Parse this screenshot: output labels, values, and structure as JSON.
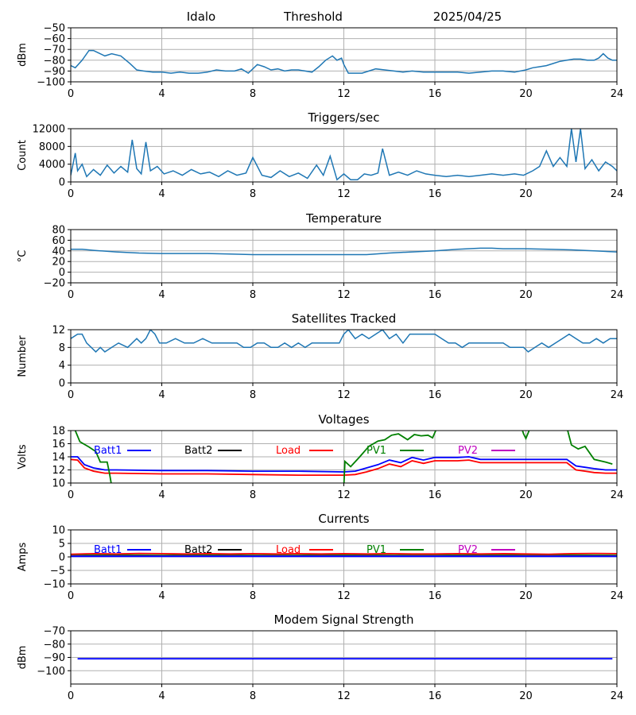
{
  "header": {
    "station": "Idalo",
    "threshold_label": "Threshold",
    "date": "2025/04/25"
  },
  "colors": {
    "series_default": "#1f77b4",
    "batt1": "#0000ff",
    "batt2": "#000000",
    "load": "#ff0000",
    "pv1": "#008000",
    "pv2": "#bf00bf",
    "grid": "#b0b0b0"
  },
  "chart_data": [
    {
      "id": "threshold",
      "type": "line",
      "title": "",
      "ylabel": "dBm",
      "xlim": [
        0,
        24
      ],
      "xticks": [
        "0",
        "4",
        "8",
        "12",
        "16",
        "20",
        "24"
      ],
      "ylim": [
        -100,
        -50
      ],
      "yticks": [
        "−50",
        "−60",
        "−70",
        "−80",
        "−90",
        "−100"
      ],
      "series": [
        {
          "color_key": "series_default",
          "x": [
            0,
            0.2,
            0.5,
            0.8,
            1.0,
            1.2,
            1.5,
            1.8,
            2.2,
            2.6,
            2.9,
            3.2,
            3.6,
            4.0,
            4.4,
            4.8,
            5.2,
            5.6,
            6.0,
            6.4,
            6.8,
            7.2,
            7.5,
            7.8,
            8.0,
            8.2,
            8.5,
            8.8,
            9.1,
            9.4,
            9.7,
            10.0,
            10.3,
            10.6,
            10.9,
            11.2,
            11.5,
            11.7,
            11.9,
            12.0,
            12.2,
            12.5,
            12.8,
            13.1,
            13.4,
            13.8,
            14.2,
            14.6,
            15.0,
            15.5,
            16.0,
            16.5,
            17.0,
            17.5,
            18.0,
            18.5,
            19.0,
            19.5,
            20.0,
            20.3,
            20.6,
            20.9,
            21.2,
            21.5,
            21.8,
            22.1,
            22.4,
            22.7,
            23.0,
            23.2,
            23.4,
            23.6,
            23.8,
            24.0
          ],
          "y": [
            -85,
            -87,
            -80,
            -71,
            -71,
            -73,
            -76,
            -74,
            -76,
            -83,
            -89,
            -90,
            -91,
            -91,
            -92,
            -91,
            -92,
            -92,
            -91,
            -89,
            -90,
            -90,
            -88,
            -92,
            -88,
            -84,
            -86,
            -89,
            -88,
            -90,
            -89,
            -89,
            -90,
            -91,
            -86,
            -80,
            -76,
            -80,
            -78,
            -84,
            -92,
            -92,
            -92,
            -90,
            -88,
            -89,
            -90,
            -91,
            -90,
            -91,
            -91,
            -91,
            -91,
            -92,
            -91,
            -90,
            -90,
            -91,
            -89,
            -87,
            -86,
            -85,
            -83,
            -81,
            -80,
            -79,
            -79,
            -80,
            -80,
            -78,
            -74,
            -78,
            -80,
            -80
          ]
        }
      ]
    },
    {
      "id": "triggers",
      "type": "line",
      "title": "Triggers/sec",
      "ylabel": "Count",
      "xlim": [
        0,
        24
      ],
      "xticks": [
        "0",
        "4",
        "8",
        "12",
        "16",
        "20",
        "24"
      ],
      "ylim": [
        0,
        12000
      ],
      "yticks": [
        "0",
        "4000",
        "8000",
        "12000"
      ],
      "series": [
        {
          "color_key": "series_default",
          "x": [
            0,
            0.2,
            0.3,
            0.5,
            0.7,
            1.0,
            1.3,
            1.6,
            1.9,
            2.2,
            2.5,
            2.7,
            2.9,
            3.1,
            3.3,
            3.5,
            3.8,
            4.1,
            4.5,
            4.9,
            5.3,
            5.7,
            6.1,
            6.5,
            6.9,
            7.3,
            7.7,
            8.0,
            8.4,
            8.8,
            9.2,
            9.6,
            10.0,
            10.4,
            10.8,
            11.1,
            11.4,
            11.7,
            12.0,
            12.3,
            12.6,
            12.9,
            13.2,
            13.5,
            13.7,
            14.0,
            14.4,
            14.8,
            15.2,
            15.6,
            16.0,
            16.5,
            17.0,
            17.5,
            18.0,
            18.5,
            19.0,
            19.5,
            19.9,
            20.3,
            20.6,
            20.9,
            21.2,
            21.5,
            21.8,
            22.0,
            22.2,
            22.4,
            22.6,
            22.9,
            23.2,
            23.5,
            23.8,
            24.0
          ],
          "y": [
            1500,
            6500,
            2500,
            4000,
            1200,
            2800,
            1500,
            3800,
            2000,
            3500,
            2200,
            9500,
            3000,
            1800,
            9000,
            2500,
            3500,
            1800,
            2500,
            1500,
            2800,
            1800,
            2200,
            1200,
            2500,
            1500,
            2000,
            5500,
            1500,
            1000,
            2500,
            1200,
            2000,
            800,
            3800,
            1500,
            5800,
            500,
            1800,
            500,
            500,
            1800,
            1500,
            2000,
            7500,
            1500,
            2200,
            1500,
            2500,
            1800,
            1500,
            1200,
            1500,
            1200,
            1500,
            1800,
            1500,
            1800,
            1500,
            2500,
            3500,
            7000,
            3500,
            5500,
            3500,
            12000,
            4500,
            12000,
            3000,
            5000,
            2500,
            4500,
            3500,
            2500
          ]
        }
      ]
    },
    {
      "id": "temperature",
      "type": "line",
      "title": "Temperature",
      "ylabel": "°C",
      "xlim": [
        0,
        24
      ],
      "xticks": [
        "0",
        "4",
        "8",
        "12",
        "16",
        "20",
        "24"
      ],
      "ylim": [
        -20,
        80
      ],
      "yticks": [
        "−20",
        "0",
        "20",
        "40",
        "60",
        "80"
      ],
      "series": [
        {
          "color_key": "series_default",
          "x": [
            0,
            0.5,
            1,
            2,
            3,
            4,
            5,
            6,
            7,
            8,
            9,
            10,
            11,
            12,
            13,
            14,
            15,
            16,
            17,
            18,
            18.5,
            19,
            20,
            21,
            22,
            23,
            24
          ],
          "y": [
            43,
            43,
            41,
            38,
            36,
            35,
            35,
            35,
            34,
            33,
            33,
            33,
            33,
            33,
            33,
            36,
            38,
            40,
            43,
            45,
            45,
            44,
            44,
            43,
            42,
            40,
            38
          ]
        }
      ]
    },
    {
      "id": "satellites",
      "type": "line",
      "title": "Satellites Tracked",
      "ylabel": "Number",
      "xlim": [
        0,
        24
      ],
      "xticks": [
        "0",
        "4",
        "8",
        "12",
        "16",
        "20",
        "24"
      ],
      "ylim": [
        0,
        12
      ],
      "yticks": [
        "0",
        "4",
        "8",
        "12"
      ],
      "series": [
        {
          "color_key": "series_default",
          "x": [
            0,
            0.3,
            0.5,
            0.7,
            0.9,
            1.1,
            1.3,
            1.5,
            1.8,
            2.1,
            2.5,
            2.9,
            3.1,
            3.3,
            3.5,
            3.7,
            3.9,
            4.2,
            4.6,
            5.0,
            5.4,
            5.8,
            6.2,
            6.6,
            7.0,
            7.3,
            7.6,
            7.9,
            8.2,
            8.5,
            8.8,
            9.1,
            9.4,
            9.7,
            10.0,
            10.3,
            10.6,
            11.0,
            11.4,
            11.8,
            12.0,
            12.2,
            12.5,
            12.8,
            13.1,
            13.4,
            13.7,
            14.0,
            14.3,
            14.6,
            14.9,
            15.2,
            15.5,
            15.8,
            16.0,
            16.3,
            16.6,
            16.9,
            17.2,
            17.5,
            17.8,
            18.1,
            18.4,
            18.7,
            19.0,
            19.3,
            19.6,
            19.9,
            20.1,
            20.4,
            20.7,
            21.0,
            21.3,
            21.6,
            21.9,
            22.2,
            22.5,
            22.8,
            23.1,
            23.4,
            23.7,
            24.0
          ],
          "y": [
            10,
            11,
            11,
            9,
            8,
            7,
            8,
            7,
            8,
            9,
            8,
            10,
            9,
            10,
            12,
            11,
            9,
            9,
            10,
            9,
            9,
            10,
            9,
            9,
            9,
            9,
            8,
            8,
            9,
            9,
            8,
            8,
            9,
            8,
            9,
            8,
            9,
            9,
            9,
            9,
            11,
            12,
            10,
            11,
            10,
            11,
            12,
            10,
            11,
            9,
            11,
            11,
            11,
            11,
            11,
            10,
            9,
            9,
            8,
            9,
            9,
            9,
            9,
            9,
            9,
            8,
            8,
            8,
            7,
            8,
            9,
            8,
            9,
            10,
            11,
            10,
            9,
            9,
            10,
            9,
            10,
            10
          ]
        }
      ]
    },
    {
      "id": "voltages",
      "type": "line",
      "title": "Voltages",
      "ylabel": "Volts",
      "xlim": [
        0,
        24
      ],
      "xticks": [
        "0",
        "4",
        "8",
        "12",
        "16",
        "20",
        "24"
      ],
      "ylim": [
        10,
        18
      ],
      "yticks": [
        "10",
        "12",
        "14",
        "16",
        "18"
      ],
      "legend": [
        "Batt1",
        "Batt2",
        "Load",
        "PV1",
        "PV2"
      ],
      "series": [
        {
          "name": "Batt1",
          "color_key": "batt1",
          "x": [
            0,
            0.3,
            0.6,
            1.0,
            1.5,
            2.0,
            4.0,
            6.0,
            8.0,
            10.0,
            12.0,
            12.5,
            13.0,
            13.5,
            14.0,
            14.5,
            15.0,
            15.5,
            16.0,
            16.5,
            17.0,
            17.5,
            18.0,
            19.0,
            20.0,
            21.0,
            21.8,
            22.2,
            22.6,
            23.0,
            23.5,
            24.0
          ],
          "y": [
            14,
            14,
            12.8,
            12.3,
            12.0,
            12.0,
            11.9,
            11.9,
            11.8,
            11.8,
            11.7,
            11.8,
            12.3,
            12.8,
            13.5,
            13.1,
            13.9,
            13.5,
            13.9,
            13.9,
            13.9,
            14.0,
            13.6,
            13.6,
            13.6,
            13.6,
            13.6,
            12.6,
            12.4,
            12.2,
            12.0,
            12.0
          ]
        },
        {
          "name": "Load",
          "color_key": "load",
          "x": [
            0,
            0.3,
            0.6,
            1.0,
            1.5,
            2.0,
            4.0,
            6.0,
            8.0,
            10.0,
            12.0,
            12.5,
            13.0,
            13.5,
            14.0,
            14.5,
            15.0,
            15.5,
            16.0,
            16.5,
            17.0,
            17.5,
            18.0,
            19.0,
            20.0,
            21.0,
            21.8,
            22.2,
            22.6,
            23.0,
            23.5,
            24.0
          ],
          "y": [
            13.6,
            13.5,
            12.3,
            11.8,
            11.5,
            11.5,
            11.4,
            11.4,
            11.3,
            11.2,
            11.2,
            11.3,
            11.7,
            12.2,
            12.9,
            12.5,
            13.4,
            13.0,
            13.4,
            13.4,
            13.4,
            13.5,
            13.1,
            13.1,
            13.1,
            13.1,
            13.1,
            12.0,
            11.8,
            11.6,
            11.5,
            11.5
          ]
        },
        {
          "name": "PV1",
          "color_key": "pv1",
          "x": [
            0,
            0.2,
            0.4,
            0.8,
            1.1,
            1.3,
            1.6,
            1.7,
            1.8,
            12.0,
            12.05,
            12.3,
            12.7,
            13.1,
            13.5,
            13.8,
            14.1,
            14.4,
            14.8,
            15.1,
            15.4,
            15.7,
            15.9,
            16.1,
            19.8,
            19.9,
            20.0,
            20.2,
            21.8,
            22.0,
            22.3,
            22.6,
            23.0,
            23.5,
            23.8
          ],
          "y": [
            18.5,
            18,
            16.3,
            15.5,
            14.8,
            13.2,
            13.2,
            11.5,
            9.5,
            9.5,
            13.3,
            12.5,
            14.0,
            15.6,
            16.4,
            16.6,
            17.3,
            17.5,
            16.6,
            17.4,
            17.2,
            17.3,
            16.9,
            18.5,
            18.5,
            17.5,
            16.8,
            18.5,
            18.5,
            15.8,
            15.2,
            15.6,
            13.6,
            13.2,
            12.9
          ]
        },
        {
          "name": "Batt2",
          "color_key": "batt2",
          "x": [],
          "y": []
        },
        {
          "name": "PV2",
          "color_key": "pv2",
          "x": [],
          "y": []
        }
      ]
    },
    {
      "id": "currents",
      "type": "line",
      "title": "Currents",
      "ylabel": "Amps",
      "xlim": [
        0,
        24
      ],
      "xticks": [
        "0",
        "4",
        "8",
        "12",
        "16",
        "20",
        "24"
      ],
      "ylim": [
        -10,
        10
      ],
      "yticks": [
        "−10",
        "−5",
        "0",
        "5",
        "10"
      ],
      "legend": [
        "Batt1",
        "Batt2",
        "Load",
        "PV1",
        "PV2"
      ],
      "series": [
        {
          "name": "PV1",
          "color_key": "pv1",
          "x": [
            0,
            2,
            4,
            6,
            8,
            10,
            12,
            14,
            16,
            18,
            20,
            22,
            24
          ],
          "y": [
            0.6,
            0.7,
            0.6,
            0.7,
            0.6,
            0.6,
            0.7,
            0.6,
            0.6,
            0.7,
            0.6,
            0.7,
            0.6
          ]
        },
        {
          "name": "PV2",
          "color_key": "pv2",
          "x": [
            0,
            24
          ],
          "y": [
            0.3,
            0.3
          ]
        },
        {
          "name": "Load",
          "color_key": "load",
          "x": [
            0,
            1,
            2,
            3,
            4,
            5,
            6,
            7,
            8,
            9,
            10,
            11,
            12,
            13,
            14,
            15,
            16,
            17,
            18,
            19,
            20,
            21,
            22,
            23,
            24
          ],
          "y": [
            1.0,
            1.2,
            1.1,
            1.3,
            1.2,
            1.1,
            1.2,
            1.1,
            1.2,
            1.1,
            1.2,
            1.1,
            1.2,
            1.1,
            1.2,
            1.1,
            1.1,
            1.2,
            1.1,
            1.2,
            1.1,
            1.0,
            1.2,
            1.3,
            1.2
          ]
        },
        {
          "name": "Batt1",
          "color_key": "batt1",
          "x": [
            0,
            24
          ],
          "y": [
            0.2,
            0.2
          ]
        },
        {
          "name": "Batt2",
          "color_key": "batt2",
          "x": [],
          "y": []
        }
      ]
    },
    {
      "id": "modem",
      "type": "line",
      "title": "Modem Signal Strength",
      "ylabel": "dBm",
      "xlim": [
        0,
        24
      ],
      "xticks": [
        "0",
        "4",
        "8",
        "12",
        "16",
        "20",
        "24"
      ],
      "ylim": [
        -110,
        -70
      ],
      "yticks": [
        "−70",
        "−80",
        "−90",
        "−100"
      ],
      "series": [
        {
          "color_key": "batt1",
          "x": [
            0.3,
            23.8
          ],
          "y": [
            -91,
            -91
          ]
        }
      ]
    }
  ]
}
